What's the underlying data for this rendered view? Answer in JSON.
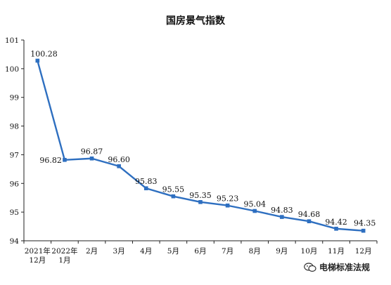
{
  "chart_data": {
    "type": "line",
    "title": "国房景气指数",
    "categories": [
      [
        "2021年",
        "12月"
      ],
      [
        "2022年",
        "1月"
      ],
      [
        "2月"
      ],
      [
        "3月"
      ],
      [
        "4月"
      ],
      [
        "5月"
      ],
      [
        "6月"
      ],
      [
        "7月"
      ],
      [
        "8月"
      ],
      [
        "9月"
      ],
      [
        "10月"
      ],
      [
        "11月"
      ],
      [
        "12月"
      ]
    ],
    "values": [
      100.28,
      96.82,
      96.87,
      96.6,
      95.83,
      95.55,
      95.35,
      95.23,
      95.04,
      94.83,
      94.68,
      94.42,
      94.35
    ],
    "data_labels": [
      "100.28",
      "96.82",
      "96.87",
      "96.60",
      "95.83",
      "95.55",
      "95.35",
      "95.23",
      "95.04",
      "94.83",
      "94.68",
      "94.42",
      "94.35"
    ],
    "ylim": [
      94,
      101
    ],
    "yticks": [
      94,
      95,
      96,
      97,
      98,
      99,
      100,
      101
    ],
    "color": "#2e6fc0",
    "grid": false,
    "legend": "none"
  },
  "watermark": {
    "text": "电梯标准法规",
    "icon": "wechat-icon"
  }
}
